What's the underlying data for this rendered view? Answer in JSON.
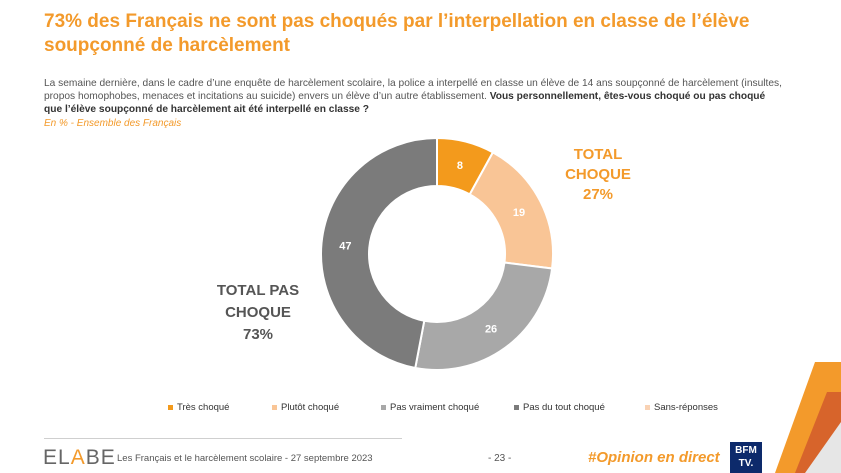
{
  "title": "73% des Français ne sont pas choqués par l’interpellation en classe de l’élève soupçonné de harcèlement",
  "intro": "La semaine dernière, dans le cadre d’une enquête de harcèlement scolaire, la police a interpellé en classe un élève de 14 ans soupçonné de harcèlement (insultes, propos homophobes, menaces et incitations au suicide) envers un élève d’un autre établissement.",
  "question": "Vous personnellement, êtes-vous choqué ou pas choqué que l’élève soupçonné de harcèlement ait été interpellé en classe ?",
  "subtitle": "En % - Ensemble des Français",
  "chart_data": {
    "type": "pie",
    "style": "donut",
    "categories": [
      "Très choqué",
      "Plutôt choqué",
      "Pas vraiment choqué",
      "Pas du tout choqué",
      "Sans-réponses"
    ],
    "values": [
      8,
      19,
      26,
      47,
      0
    ],
    "colors": [
      "#f39a1c",
      "#f9c596",
      "#a8a8a8",
      "#7b7b7b",
      "#f9d2b4"
    ],
    "value_labels": [
      "8",
      "19",
      "26",
      "47",
      ""
    ],
    "legend_position": "bottom"
  },
  "totals": {
    "choque_line1": "TOTAL",
    "choque_line2": "CHOQUE",
    "choque_value": "27%",
    "pas_line1": "TOTAL PAS",
    "pas_line2": "CHOQUE",
    "pas_value": "73%"
  },
  "legend": [
    "Très choqué",
    "Plutôt choqué",
    "Pas vraiment choqué",
    "Pas du tout choqué",
    "Sans-réponses"
  ],
  "footer": {
    "logo_pre": "EL",
    "logo_e": "A",
    "logo_post": "BE",
    "text": "Les Français et le harcèlement scolaire - 27 septembre 2023",
    "page": "- 23 -",
    "hashtag": "#Opinion en direct",
    "bfm_line1": "BFM",
    "bfm_line2": "TV."
  },
  "colors": {
    "accent": "#f39a2b",
    "text": "#555555"
  }
}
